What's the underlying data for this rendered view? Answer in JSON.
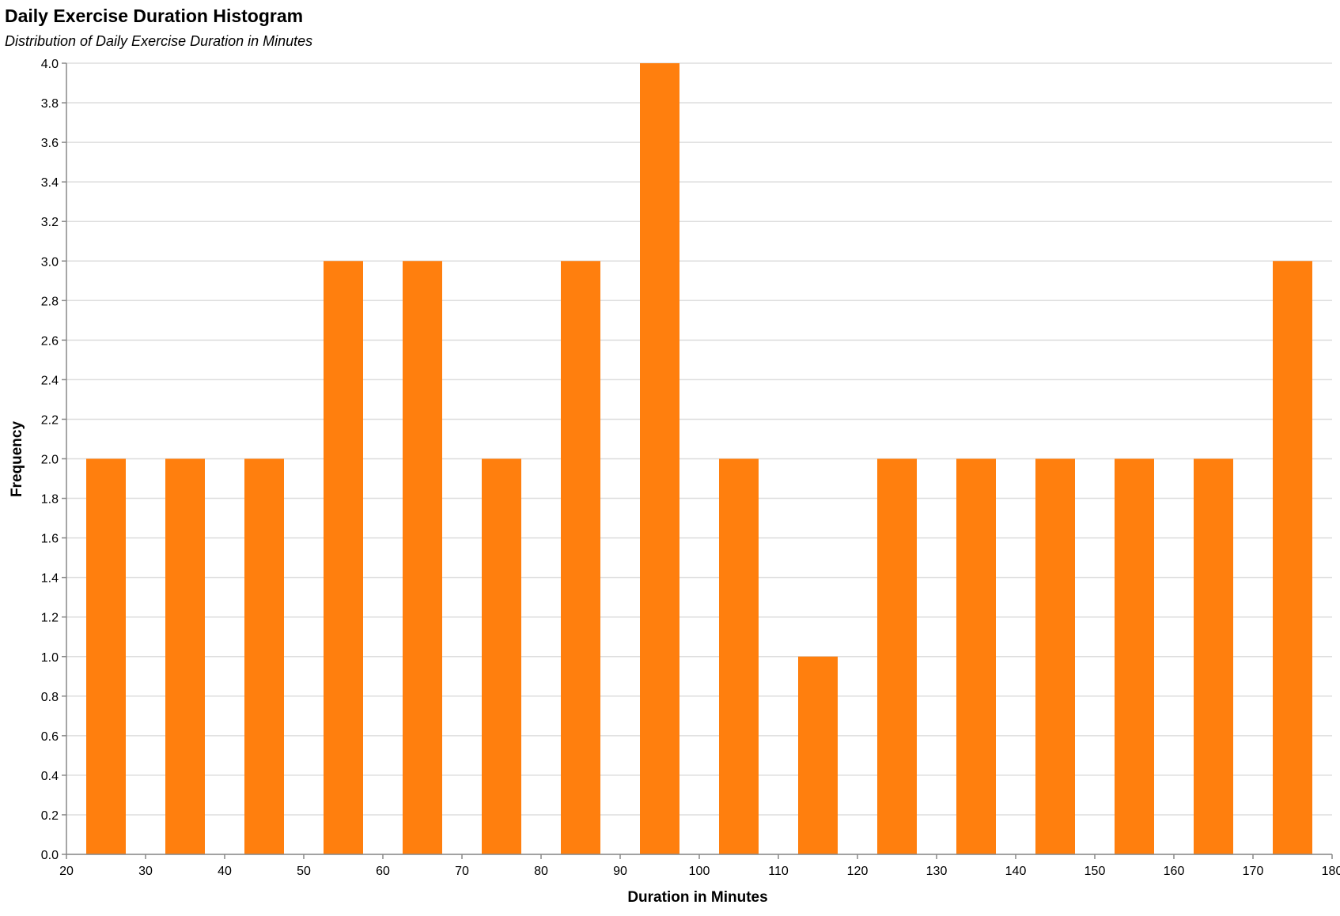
{
  "chart_data": {
    "type": "bar",
    "title": "Daily Exercise Duration Histogram",
    "subtitle": "Distribution of Daily Exercise Duration in Minutes",
    "xlabel": "Duration in Minutes",
    "ylabel": "Frequency",
    "xlim": [
      20,
      180
    ],
    "ylim": [
      0,
      4
    ],
    "x_ticks": [
      20,
      30,
      40,
      50,
      60,
      70,
      80,
      90,
      100,
      110,
      120,
      130,
      140,
      150,
      160,
      170,
      180
    ],
    "y_ticks": [
      0.0,
      0.2,
      0.4,
      0.6,
      0.8,
      1.0,
      1.2,
      1.4,
      1.6,
      1.8,
      2.0,
      2.2,
      2.4,
      2.6,
      2.8,
      3.0,
      3.2,
      3.4,
      3.6,
      3.8,
      4.0
    ],
    "grid": true,
    "bar_color": "#ff7f0e",
    "bins": [
      {
        "x0": 22.5,
        "x1": 27.5,
        "count": 2
      },
      {
        "x0": 32.5,
        "x1": 37.5,
        "count": 2
      },
      {
        "x0": 42.5,
        "x1": 47.5,
        "count": 2
      },
      {
        "x0": 52.5,
        "x1": 57.5,
        "count": 3
      },
      {
        "x0": 62.5,
        "x1": 67.5,
        "count": 3
      },
      {
        "x0": 72.5,
        "x1": 77.5,
        "count": 2
      },
      {
        "x0": 82.5,
        "x1": 87.5,
        "count": 3
      },
      {
        "x0": 92.5,
        "x1": 97.5,
        "count": 4
      },
      {
        "x0": 102.5,
        "x1": 107.5,
        "count": 2
      },
      {
        "x0": 112.5,
        "x1": 117.5,
        "count": 1
      },
      {
        "x0": 122.5,
        "x1": 127.5,
        "count": 2
      },
      {
        "x0": 132.5,
        "x1": 137.5,
        "count": 2
      },
      {
        "x0": 142.5,
        "x1": 147.5,
        "count": 2
      },
      {
        "x0": 152.5,
        "x1": 157.5,
        "count": 2
      },
      {
        "x0": 162.5,
        "x1": 167.5,
        "count": 2
      },
      {
        "x0": 172.5,
        "x1": 177.5,
        "count": 3
      }
    ]
  }
}
